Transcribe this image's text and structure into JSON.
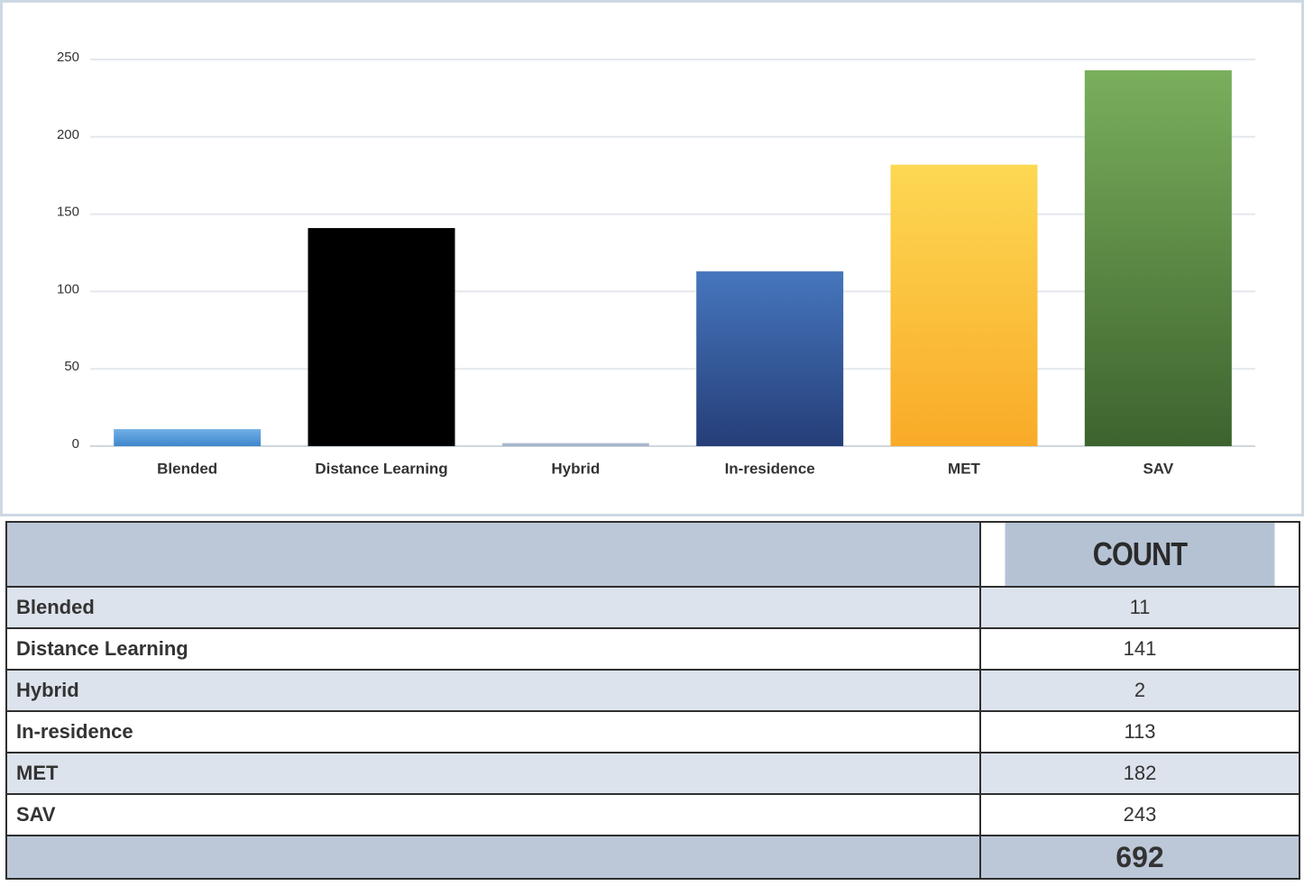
{
  "chart_data": {
    "type": "bar",
    "categories": [
      "Blended",
      "Distance Learning",
      "Hybrid",
      "In-residence",
      "MET",
      "SAV"
    ],
    "values": [
      11,
      141,
      2,
      113,
      182,
      243
    ],
    "colors": [
      [
        "#72b0e6",
        "#3f86cc"
      ],
      [
        "#000000",
        "#000000"
      ],
      [
        "#b4c2d4",
        "#9fb0c6"
      ],
      [
        "#4676bd",
        "#253e78"
      ],
      [
        "#fdd853",
        "#f9ab28"
      ],
      [
        "#7aaf5c",
        "#3d632e"
      ]
    ],
    "ylim": [
      0,
      250
    ],
    "yticks": [
      0,
      50,
      100,
      150,
      200,
      250
    ],
    "grid": true
  },
  "table": {
    "header": "COUNT",
    "total": 692
  }
}
